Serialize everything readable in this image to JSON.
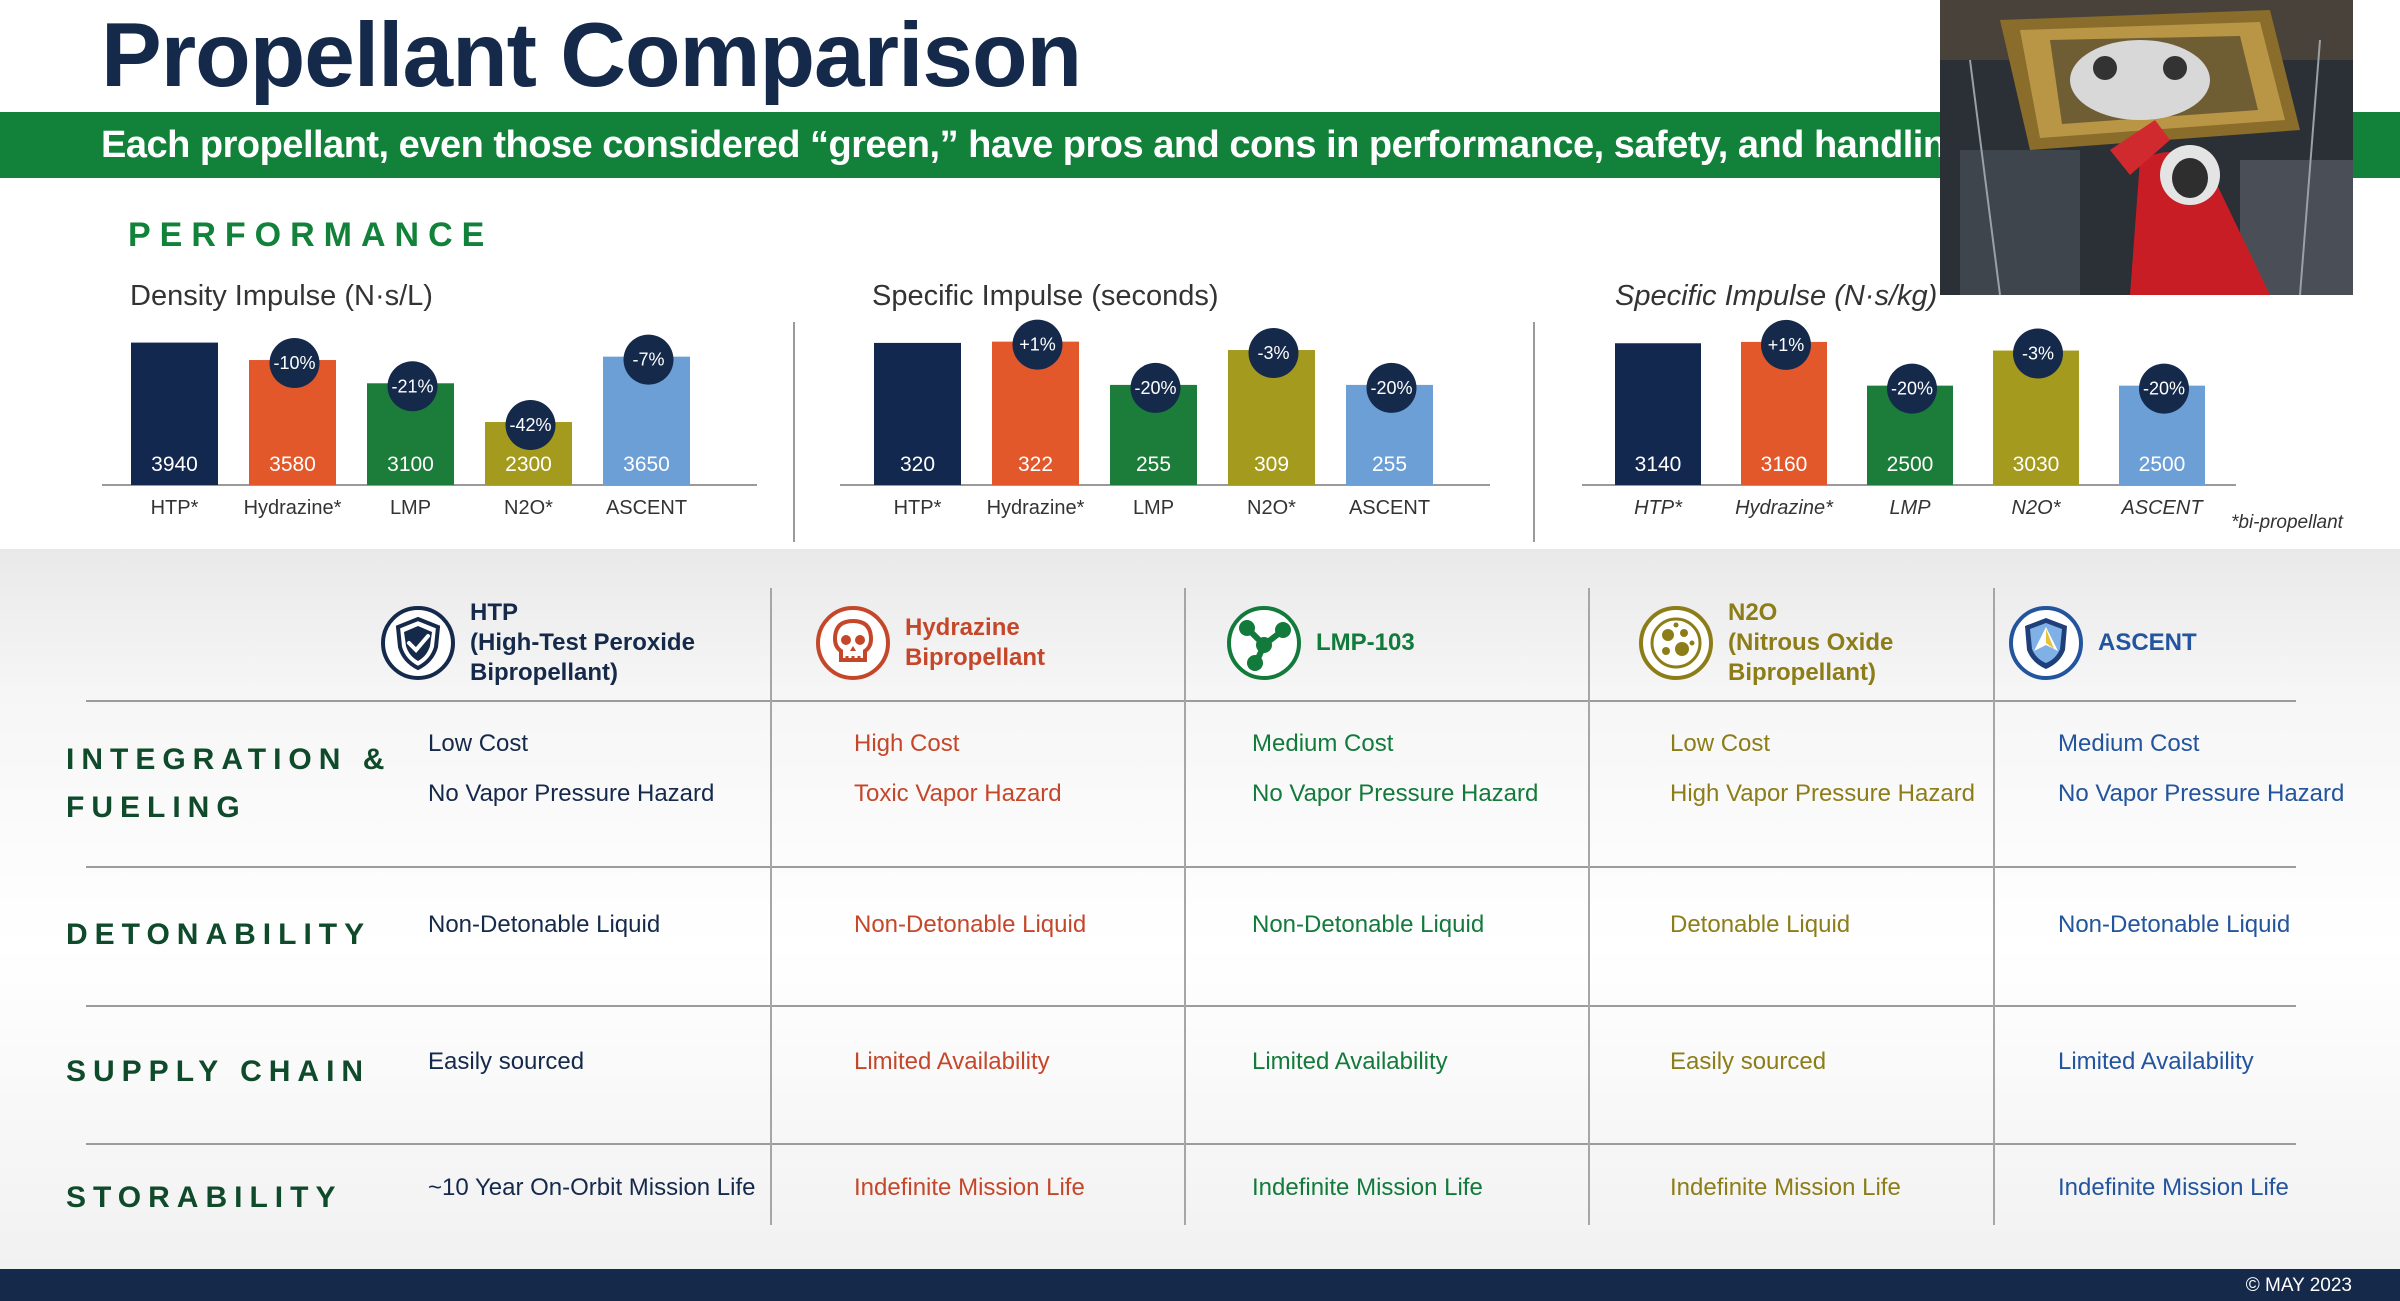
{
  "title": "Propellant Comparison",
  "subtitle": "Each propellant, even those considered “green,” have pros and cons in performance, safety, and handling",
  "performance_heading": "PERFORMANCE",
  "footnote": "*bi-propellant",
  "footer_date": "© MAY 2023",
  "colors": {
    "navy": "#15294b",
    "green": "#12813a",
    "HTP": "#13284f",
    "Hydrazine": "#e2582b",
    "LMP": "#1b7d39",
    "N2O": "#a39a1e",
    "ASCENT": "#6c9fd6"
  },
  "photo": {
    "icon": "astronaut-photo"
  },
  "chart_data": [
    {
      "type": "bar",
      "title": "Density Impulse (N·s/L)",
      "categories": [
        "HTP*",
        "Hydrazine*",
        "LMP",
        "N2O*",
        "ASCENT"
      ],
      "values": [
        3940,
        3580,
        3100,
        2300,
        3650
      ],
      "value_labels": [
        "3940",
        "3580",
        "3100",
        "2300",
        "3650"
      ],
      "badges": [
        "",
        "-10%",
        "-21%",
        "-42%",
        "-7%"
      ],
      "ylim": [
        1000,
        4200
      ],
      "grid": false,
      "xlabel": "",
      "ylabel": ""
    },
    {
      "type": "bar",
      "title": "Specific Impulse (seconds)",
      "categories": [
        "HTP*",
        "Hydrazine*",
        "LMP",
        "N2O*",
        "ASCENT"
      ],
      "values": [
        320,
        322,
        255,
        309,
        255
      ],
      "value_labels": [
        "320",
        "322",
        "255",
        "309",
        "255"
      ],
      "badges": [
        "",
        "+1%",
        "-20%",
        "-3%",
        "-20%"
      ],
      "ylim": [
        100,
        340
      ],
      "grid": false,
      "xlabel": "",
      "ylabel": ""
    },
    {
      "type": "bar",
      "title": "Specific Impulse (N·s/kg)",
      "categories": [
        "HTP*",
        "Hydrazine*",
        "LMP",
        "N2O*",
        "ASCENT"
      ],
      "values": [
        3140,
        3160,
        2500,
        3030,
        2500
      ],
      "value_labels": [
        "3140",
        "3160",
        "2500",
        "3030",
        "2500"
      ],
      "badges": [
        "",
        "+1%",
        "-20%",
        "-3%",
        "-20%"
      ],
      "ylim": [
        1000,
        3340
      ],
      "grid": false,
      "xlabel": "",
      "ylabel": ""
    }
  ],
  "propellants": [
    {
      "name": "HTP\n(High-Test Peroxide\nBipropellant)",
      "icon": "shield-check-icon",
      "color": "#15294b"
    },
    {
      "name": "Hydrazine\nBipropellant",
      "icon": "skull-icon",
      "color": "#c5472a"
    },
    {
      "name": "LMP-103",
      "icon": "molecule-icon",
      "color": "#127a3b"
    },
    {
      "name": "N2O\n(Nitrous Oxide\nBipropellant)",
      "icon": "bubbles-icon",
      "color": "#8c7d18"
    },
    {
      "name": "ASCENT",
      "icon": "air-force-crest-icon",
      "color": "#23549e"
    }
  ],
  "rows": [
    {
      "label": "INTEGRATION &\nFUELING",
      "cells": [
        [
          "Low Cost",
          "No Vapor Pressure Hazard"
        ],
        [
          "High Cost",
          "Toxic Vapor Hazard"
        ],
        [
          "Medium Cost",
          "No Vapor Pressure Hazard"
        ],
        [
          "Low Cost",
          "High Vapor Pressure Hazard"
        ],
        [
          "Medium Cost",
          "No Vapor Pressure Hazard"
        ]
      ]
    },
    {
      "label": "DETONABILITY",
      "cells": [
        [
          "Non-Detonable Liquid"
        ],
        [
          "Non-Detonable Liquid"
        ],
        [
          "Non-Detonable Liquid"
        ],
        [
          "Detonable Liquid"
        ],
        [
          "Non-Detonable Liquid"
        ]
      ]
    },
    {
      "label": "SUPPLY CHAIN",
      "cells": [
        [
          "Easily sourced"
        ],
        [
          "Limited Availability"
        ],
        [
          "Limited Availability"
        ],
        [
          "Easily sourced"
        ],
        [
          "Limited Availability"
        ]
      ]
    },
    {
      "label": "STORABILITY",
      "cells": [
        [
          "~10 Year On-Orbit Mission Life"
        ],
        [
          "Indefinite Mission Life"
        ],
        [
          "Indefinite Mission Life"
        ],
        [
          "Indefinite Mission Life"
        ],
        [
          "Indefinite Mission Life"
        ]
      ]
    }
  ]
}
